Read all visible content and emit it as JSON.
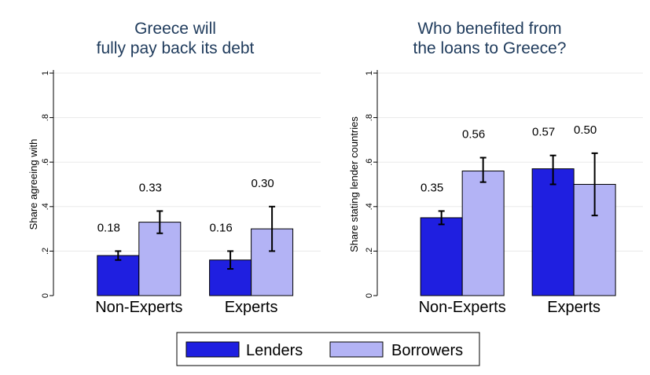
{
  "chart_data": [
    {
      "type": "bar",
      "title": [
        "Greece will",
        "fully pay back its debt"
      ],
      "ylabel": "Share agreeing with",
      "ylim": [
        0,
        1
      ],
      "yticks": [
        "0",
        ".2",
        ".4",
        ".6",
        ".8",
        "1"
      ],
      "categories": [
        "Non-Experts",
        "Experts"
      ],
      "series": [
        {
          "name": "Lenders",
          "values": [
            0.18,
            0.16
          ],
          "labels": [
            "0.18",
            "0.16"
          ],
          "ci_low": [
            0.16,
            0.12
          ],
          "ci_high": [
            0.2,
            0.2
          ]
        },
        {
          "name": "Borrowers",
          "values": [
            0.33,
            0.3
          ],
          "labels": [
            "0.33",
            "0.30"
          ],
          "ci_low": [
            0.28,
            0.2
          ],
          "ci_high": [
            0.38,
            0.4
          ]
        }
      ],
      "grid": true
    },
    {
      "type": "bar",
      "title": [
        "Who benefited from",
        "the loans to Greece?"
      ],
      "ylabel": "Share stating lender countries",
      "ylim": [
        0,
        1
      ],
      "yticks": [
        "0",
        ".2",
        ".4",
        ".6",
        ".8",
        "1"
      ],
      "categories": [
        "Non-Experts",
        "Experts"
      ],
      "series": [
        {
          "name": "Lenders",
          "values": [
            0.35,
            0.57
          ],
          "labels": [
            "0.35",
            "0.57"
          ],
          "ci_low": [
            0.32,
            0.5
          ],
          "ci_high": [
            0.38,
            0.63
          ]
        },
        {
          "name": "Borrowers",
          "values": [
            0.56,
            0.5
          ],
          "labels": [
            "0.56",
            "0.50"
          ],
          "ci_low": [
            0.51,
            0.36
          ],
          "ci_high": [
            0.62,
            0.64
          ]
        }
      ],
      "grid": true
    }
  ],
  "legend": {
    "placement": "bottom",
    "items": [
      {
        "label": "Lenders",
        "color": "#1f1fe0"
      },
      {
        "label": "Borrowers",
        "color": "#b3b3f5"
      }
    ]
  }
}
